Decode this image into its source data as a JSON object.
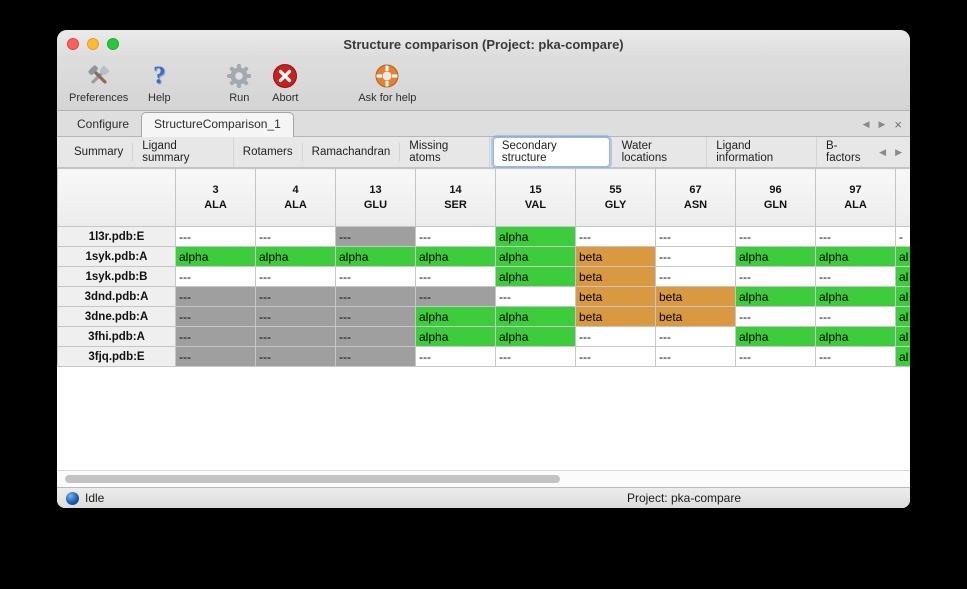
{
  "window": {
    "title": "Structure comparison (Project: pka-compare)"
  },
  "toolbar": {
    "items": [
      {
        "label": "Preferences",
        "icon": "tools-icon"
      },
      {
        "label": "Help",
        "icon": "question-mark-icon"
      },
      {
        "label": "Run",
        "icon": "gear-icon"
      },
      {
        "label": "Abort",
        "icon": "abort-cross-icon"
      },
      {
        "label": "Ask for help",
        "icon": "lifebuoy-icon"
      }
    ]
  },
  "tab_controls": {
    "left": "◀",
    "right": "▶",
    "close": "×"
  },
  "document_tabs": {
    "tabs": [
      {
        "label": "Configure",
        "selected": false
      },
      {
        "label": "StructureComparison_1",
        "selected": true
      }
    ]
  },
  "view_tabs": {
    "tabs": [
      {
        "label": "Summary",
        "selected": false
      },
      {
        "label": "Ligand summary",
        "selected": false
      },
      {
        "label": "Rotamers",
        "selected": false
      },
      {
        "label": "Ramachandran",
        "selected": false
      },
      {
        "label": "Missing atoms",
        "selected": false
      },
      {
        "label": "Secondary structure",
        "selected": true
      },
      {
        "label": "Water locations",
        "selected": false
      },
      {
        "label": "Ligand information",
        "selected": false
      },
      {
        "label": "B-factors",
        "selected": false
      }
    ]
  },
  "table": {
    "columns": [
      {
        "number": "3",
        "residue": "ALA"
      },
      {
        "number": "4",
        "residue": "ALA"
      },
      {
        "number": "13",
        "residue": "GLU"
      },
      {
        "number": "14",
        "residue": "SER"
      },
      {
        "number": "15",
        "residue": "VAL"
      },
      {
        "number": "55",
        "residue": "GLY"
      },
      {
        "number": "67",
        "residue": "ASN"
      },
      {
        "number": "96",
        "residue": "GLN"
      },
      {
        "number": "97",
        "residue": "ALA"
      },
      {
        "number": "",
        "residue": ""
      }
    ],
    "rows": [
      {
        "label": "1l3r.pdb:E",
        "cells": [
          {
            "text": "---",
            "type": "none"
          },
          {
            "text": "---",
            "type": "none"
          },
          {
            "text": "---",
            "type": "missing"
          },
          {
            "text": "---",
            "type": "none"
          },
          {
            "text": "alpha",
            "type": "alpha"
          },
          {
            "text": "---",
            "type": "none"
          },
          {
            "text": "---",
            "type": "none"
          },
          {
            "text": "---",
            "type": "none"
          },
          {
            "text": "---",
            "type": "none"
          },
          {
            "text": "-",
            "type": "none"
          }
        ]
      },
      {
        "label": "1syk.pdb:A",
        "cells": [
          {
            "text": "alpha",
            "type": "alpha"
          },
          {
            "text": "alpha",
            "type": "alpha"
          },
          {
            "text": "alpha",
            "type": "alpha"
          },
          {
            "text": "alpha",
            "type": "alpha"
          },
          {
            "text": "alpha",
            "type": "alpha"
          },
          {
            "text": "beta",
            "type": "beta"
          },
          {
            "text": "---",
            "type": "none"
          },
          {
            "text": "alpha",
            "type": "alpha"
          },
          {
            "text": "alpha",
            "type": "alpha"
          },
          {
            "text": "al",
            "type": "alpha"
          }
        ]
      },
      {
        "label": "1syk.pdb:B",
        "cells": [
          {
            "text": "---",
            "type": "none"
          },
          {
            "text": "---",
            "type": "none"
          },
          {
            "text": "---",
            "type": "none"
          },
          {
            "text": "---",
            "type": "none"
          },
          {
            "text": "alpha",
            "type": "alpha"
          },
          {
            "text": "beta",
            "type": "beta"
          },
          {
            "text": "---",
            "type": "none"
          },
          {
            "text": "---",
            "type": "none"
          },
          {
            "text": "---",
            "type": "none"
          },
          {
            "text": "al",
            "type": "alpha"
          }
        ]
      },
      {
        "label": "3dnd.pdb:A",
        "cells": [
          {
            "text": "---",
            "type": "missing"
          },
          {
            "text": "---",
            "type": "missing"
          },
          {
            "text": "---",
            "type": "missing"
          },
          {
            "text": "---",
            "type": "missing"
          },
          {
            "text": "---",
            "type": "none"
          },
          {
            "text": "beta",
            "type": "beta"
          },
          {
            "text": "beta",
            "type": "beta"
          },
          {
            "text": "alpha",
            "type": "alpha"
          },
          {
            "text": "alpha",
            "type": "alpha"
          },
          {
            "text": "al",
            "type": "alpha"
          }
        ]
      },
      {
        "label": "3dne.pdb:A",
        "cells": [
          {
            "text": "---",
            "type": "missing"
          },
          {
            "text": "---",
            "type": "missing"
          },
          {
            "text": "---",
            "type": "missing"
          },
          {
            "text": "alpha",
            "type": "alpha"
          },
          {
            "text": "alpha",
            "type": "alpha"
          },
          {
            "text": "beta",
            "type": "beta"
          },
          {
            "text": "beta",
            "type": "beta"
          },
          {
            "text": "---",
            "type": "none"
          },
          {
            "text": "---",
            "type": "none"
          },
          {
            "text": "al",
            "type": "alpha"
          }
        ]
      },
      {
        "label": "3fhi.pdb:A",
        "cells": [
          {
            "text": "---",
            "type": "missing"
          },
          {
            "text": "---",
            "type": "missing"
          },
          {
            "text": "---",
            "type": "missing"
          },
          {
            "text": "alpha",
            "type": "alpha"
          },
          {
            "text": "alpha",
            "type": "alpha"
          },
          {
            "text": "---",
            "type": "none"
          },
          {
            "text": "---",
            "type": "none"
          },
          {
            "text": "alpha",
            "type": "alpha"
          },
          {
            "text": "alpha",
            "type": "alpha"
          },
          {
            "text": "al",
            "type": "alpha"
          }
        ]
      },
      {
        "label": "3fjq.pdb:E",
        "cells": [
          {
            "text": "---",
            "type": "missing"
          },
          {
            "text": "---",
            "type": "missing"
          },
          {
            "text": "---",
            "type": "missing"
          },
          {
            "text": "---",
            "type": "none"
          },
          {
            "text": "---",
            "type": "none"
          },
          {
            "text": "---",
            "type": "none"
          },
          {
            "text": "---",
            "type": "none"
          },
          {
            "text": "---",
            "type": "none"
          },
          {
            "text": "---",
            "type": "none"
          },
          {
            "text": "al",
            "type": "alpha"
          }
        ]
      }
    ]
  },
  "status_bar": {
    "status": "Idle",
    "project": "Project: pka-compare"
  },
  "colors": {
    "alpha": "#3ccc3c",
    "beta": "#d89940",
    "missing": "#9f9f9f"
  }
}
